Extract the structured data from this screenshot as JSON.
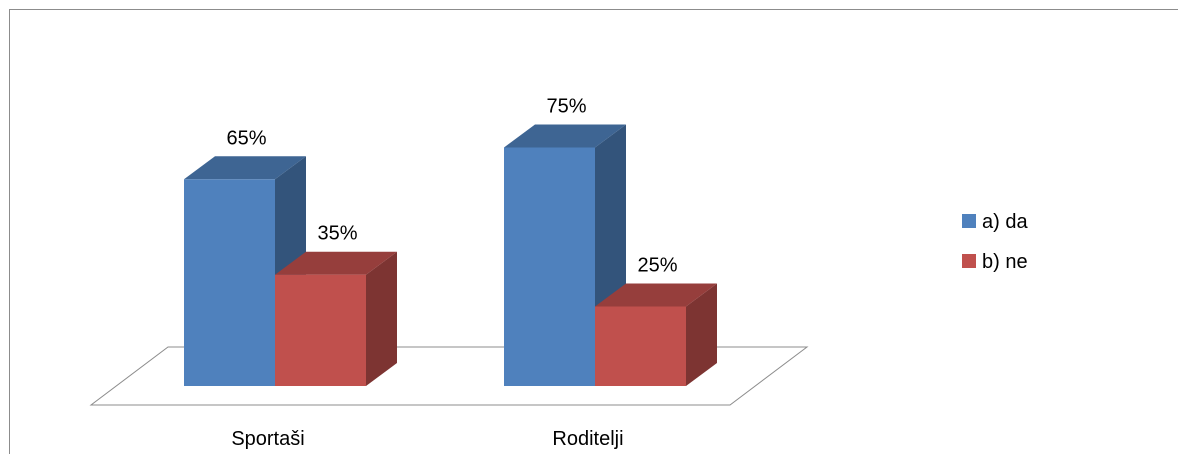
{
  "chart_data": {
    "type": "bar",
    "title": "",
    "xlabel": "",
    "ylabel": "",
    "ylim": [
      0,
      100
    ],
    "categories": [
      "Sportaši",
      "Roditelji"
    ],
    "series": [
      {
        "name": "a) da",
        "values": [
          65,
          75
        ],
        "labels": [
          "65%",
          "75%"
        ],
        "color": "#4F81BD"
      },
      {
        "name": "b) ne",
        "values": [
          35,
          25
        ],
        "labels": [
          "35%",
          "25%"
        ],
        "color": "#C0504D"
      }
    ],
    "legend_position": "right",
    "grid": false,
    "style": "3d-column"
  }
}
